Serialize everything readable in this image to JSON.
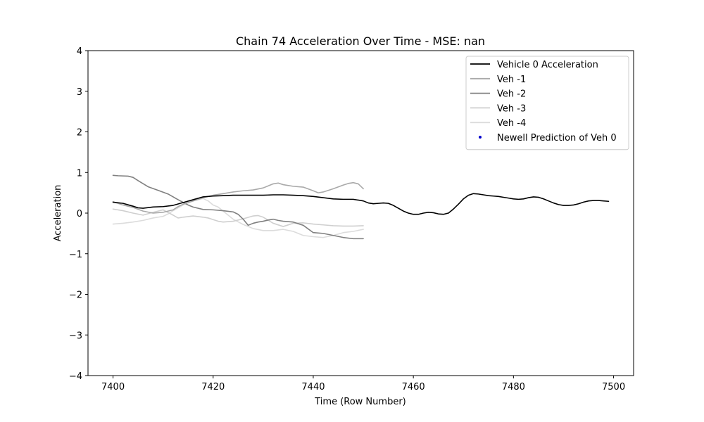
{
  "chart_data": {
    "type": "line",
    "title": "Chain 74 Acceleration Over Time - MSE: nan",
    "xlabel": "Time (Row Number)",
    "ylabel": "Acceleration",
    "xlim": [
      7395,
      7504
    ],
    "ylim": [
      -4,
      4
    ],
    "xticks": [
      7400,
      7420,
      7440,
      7460,
      7480,
      7500
    ],
    "yticks": [
      -4,
      -3,
      -2,
      -1,
      0,
      1,
      2,
      3,
      4
    ],
    "ytick_labels": [
      "−4",
      "−3",
      "−2",
      "−1",
      "0",
      "1",
      "2",
      "3",
      "4"
    ],
    "grid": false,
    "legend_position": "top-right",
    "series": [
      {
        "name": "Vehicle 0 Acceleration",
        "color": "#000000",
        "x": [
          7400,
          7402,
          7404,
          7405,
          7406,
          7408,
          7410,
          7412,
          7414,
          7416,
          7418,
          7420,
          7422,
          7424,
          7426,
          7428,
          7430,
          7432,
          7434,
          7436,
          7438,
          7440,
          7442,
          7444,
          7446,
          7448,
          7450,
          7451,
          7452,
          7453,
          7454,
          7455,
          7456,
          7457,
          7458,
          7459,
          7460,
          7461,
          7462,
          7463,
          7464,
          7465,
          7466,
          7467,
          7468,
          7469,
          7470,
          7471,
          7472,
          7473,
          7474,
          7475,
          7476,
          7477,
          7478,
          7479,
          7480,
          7481,
          7482,
          7483,
          7484,
          7485,
          7486,
          7487,
          7488,
          7489,
          7490,
          7491,
          7492,
          7493,
          7494,
          7495,
          7496,
          7497,
          7498,
          7499
        ],
        "values": [
          0.27,
          0.24,
          0.17,
          0.13,
          0.12,
          0.15,
          0.16,
          0.19,
          0.26,
          0.33,
          0.4,
          0.42,
          0.43,
          0.44,
          0.44,
          0.44,
          0.44,
          0.45,
          0.45,
          0.44,
          0.43,
          0.41,
          0.38,
          0.35,
          0.34,
          0.34,
          0.3,
          0.25,
          0.23,
          0.24,
          0.25,
          0.24,
          0.19,
          0.12,
          0.05,
          0.0,
          -0.03,
          -0.03,
          0.0,
          0.02,
          0.01,
          -0.02,
          -0.03,
          0.0,
          0.1,
          0.22,
          0.35,
          0.44,
          0.48,
          0.47,
          0.45,
          0.43,
          0.42,
          0.41,
          0.39,
          0.37,
          0.35,
          0.34,
          0.35,
          0.38,
          0.4,
          0.39,
          0.35,
          0.3,
          0.25,
          0.21,
          0.19,
          0.19,
          0.2,
          0.23,
          0.27,
          0.3,
          0.31,
          0.31,
          0.3,
          0.29
        ]
      },
      {
        "name": "Veh -1",
        "color": "#a9a9a9",
        "x": [
          7400,
          7402,
          7404,
          7406,
          7408,
          7410,
          7412,
          7413,
          7414,
          7416,
          7418,
          7420,
          7422,
          7424,
          7426,
          7428,
          7430,
          7432,
          7433,
          7434,
          7436,
          7438,
          7440,
          7441,
          7442,
          7444,
          7446,
          7447,
          7448,
          7449,
          7450
        ],
        "values": [
          0.28,
          0.2,
          0.14,
          0.05,
          0.0,
          0.02,
          0.08,
          0.16,
          0.22,
          0.3,
          0.38,
          0.44,
          0.48,
          0.52,
          0.55,
          0.57,
          0.62,
          0.72,
          0.74,
          0.7,
          0.66,
          0.64,
          0.55,
          0.5,
          0.52,
          0.6,
          0.69,
          0.73,
          0.75,
          0.72,
          0.6
        ]
      },
      {
        "name": "Veh -2",
        "color": "#808080",
        "x": [
          7400,
          7401,
          7403,
          7404,
          7405,
          7407,
          7409,
          7411,
          7413,
          7415,
          7416,
          7418,
          7420,
          7422,
          7424,
          7425,
          7426,
          7427,
          7428,
          7429,
          7430,
          7431,
          7432,
          7433,
          7434,
          7436,
          7438,
          7440,
          7442,
          7444,
          7446,
          7448,
          7450
        ],
        "values": [
          0.93,
          0.92,
          0.91,
          0.88,
          0.8,
          0.65,
          0.56,
          0.47,
          0.33,
          0.2,
          0.15,
          0.09,
          0.08,
          0.06,
          0.03,
          -0.03,
          -0.15,
          -0.3,
          -0.25,
          -0.22,
          -0.2,
          -0.17,
          -0.15,
          -0.18,
          -0.2,
          -0.22,
          -0.3,
          -0.48,
          -0.5,
          -0.55,
          -0.6,
          -0.63,
          -0.63
        ]
      },
      {
        "name": "Veh -3",
        "color": "#cfcfcf",
        "x": [
          7400,
          7402,
          7404,
          7406,
          7408,
          7410,
          7412,
          7413,
          7414,
          7416,
          7418,
          7419,
          7420,
          7421,
          7422,
          7424,
          7426,
          7428,
          7429,
          7430,
          7432,
          7434,
          7436,
          7438,
          7440,
          7442,
          7444,
          7446,
          7448,
          7450
        ],
        "values": [
          0.1,
          0.06,
          0.0,
          -0.05,
          0.02,
          0.08,
          -0.05,
          -0.12,
          -0.1,
          -0.07,
          -0.1,
          -0.12,
          -0.16,
          -0.2,
          -0.22,
          -0.2,
          -0.14,
          -0.07,
          -0.06,
          -0.1,
          -0.25,
          -0.33,
          -0.25,
          -0.24,
          -0.27,
          -0.29,
          -0.31,
          -0.32,
          -0.32,
          -0.31
        ]
      },
      {
        "name": "Veh -4",
        "color": "#dcdcdc",
        "x": [
          7400,
          7402,
          7404,
          7406,
          7408,
          7410,
          7411,
          7412,
          7414,
          7416,
          7418,
          7419,
          7420,
          7421,
          7422,
          7424,
          7426,
          7428,
          7430,
          7432,
          7434,
          7436,
          7438,
          7440,
          7442,
          7444,
          7446,
          7448,
          7450
        ],
        "values": [
          -0.27,
          -0.25,
          -0.22,
          -0.18,
          -0.12,
          -0.08,
          -0.02,
          0.06,
          0.2,
          0.3,
          0.36,
          0.3,
          0.2,
          0.15,
          0.05,
          -0.15,
          -0.28,
          -0.38,
          -0.43,
          -0.43,
          -0.4,
          -0.45,
          -0.55,
          -0.58,
          -0.6,
          -0.55,
          -0.48,
          -0.45,
          -0.4
        ]
      }
    ],
    "legend_extra": {
      "name": "Newell Prediction of Veh 0",
      "color": "#0000cc",
      "marker": "dot"
    }
  }
}
